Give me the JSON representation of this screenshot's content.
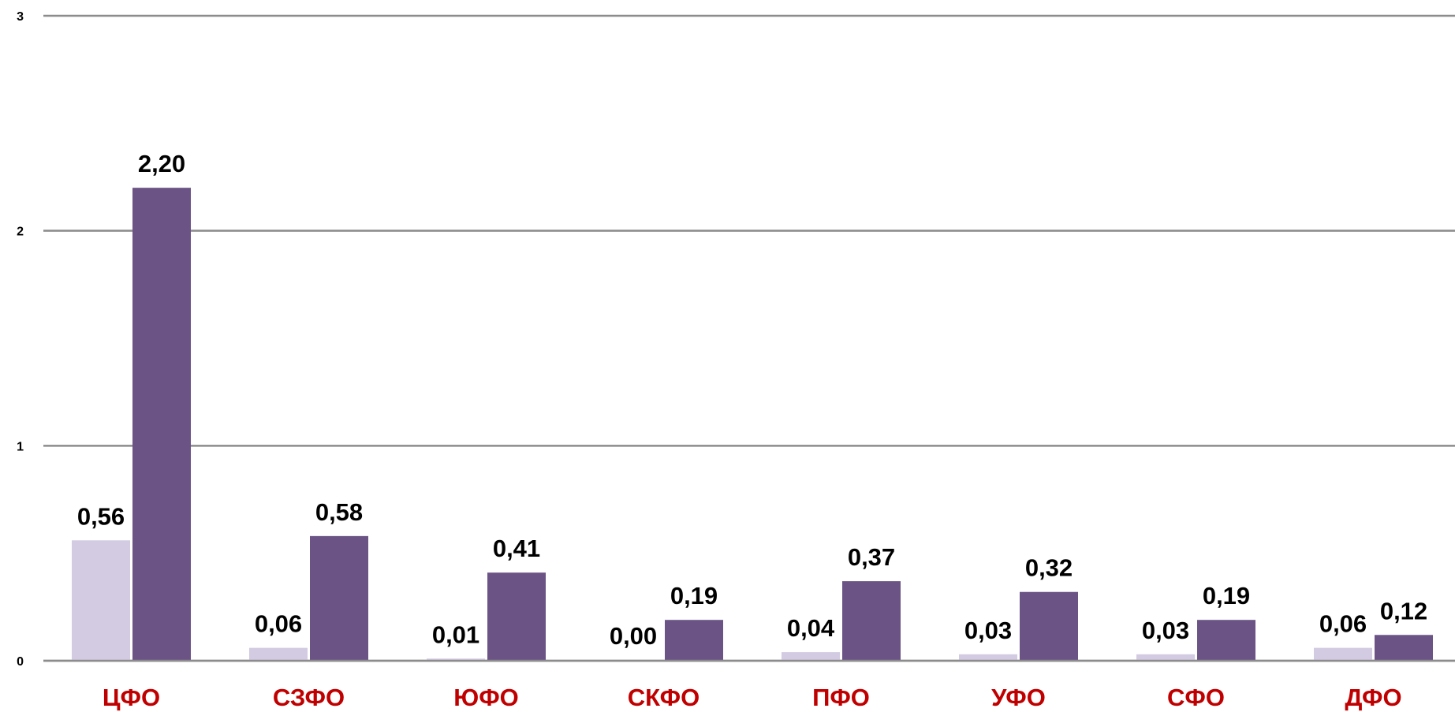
{
  "chart_data": {
    "type": "bar",
    "categories": [
      "ЦФО",
      "СЗФО",
      "ЮФО",
      "СКФО",
      "ПФО",
      "УФО",
      "СФО",
      "ДФО"
    ],
    "series": [
      {
        "values": [
          0.56,
          0.06,
          0.01,
          0.0,
          0.04,
          0.03,
          0.03,
          0.06
        ],
        "labels": [
          "0,56",
          "0,06",
          "0,01",
          "0,00",
          "0,04",
          "0,03",
          "0,03",
          "0,06"
        ],
        "color": "#d3cbe1"
      },
      {
        "values": [
          2.2,
          0.58,
          0.41,
          0.19,
          0.37,
          0.32,
          0.19,
          0.12
        ],
        "labels": [
          "2,20",
          "0,58",
          "0,41",
          "0,19",
          "0,37",
          "0,32",
          "0,19",
          "0,12"
        ],
        "color": "#6b5485"
      }
    ],
    "ylim": [
      0,
      3
    ],
    "yticks": [
      "0",
      "1",
      "2",
      "3"
    ],
    "title": "",
    "xlabel": "",
    "ylabel": "",
    "grid": true,
    "gridline_color": "#8c8c8c",
    "category_label_color": "#c00000"
  }
}
